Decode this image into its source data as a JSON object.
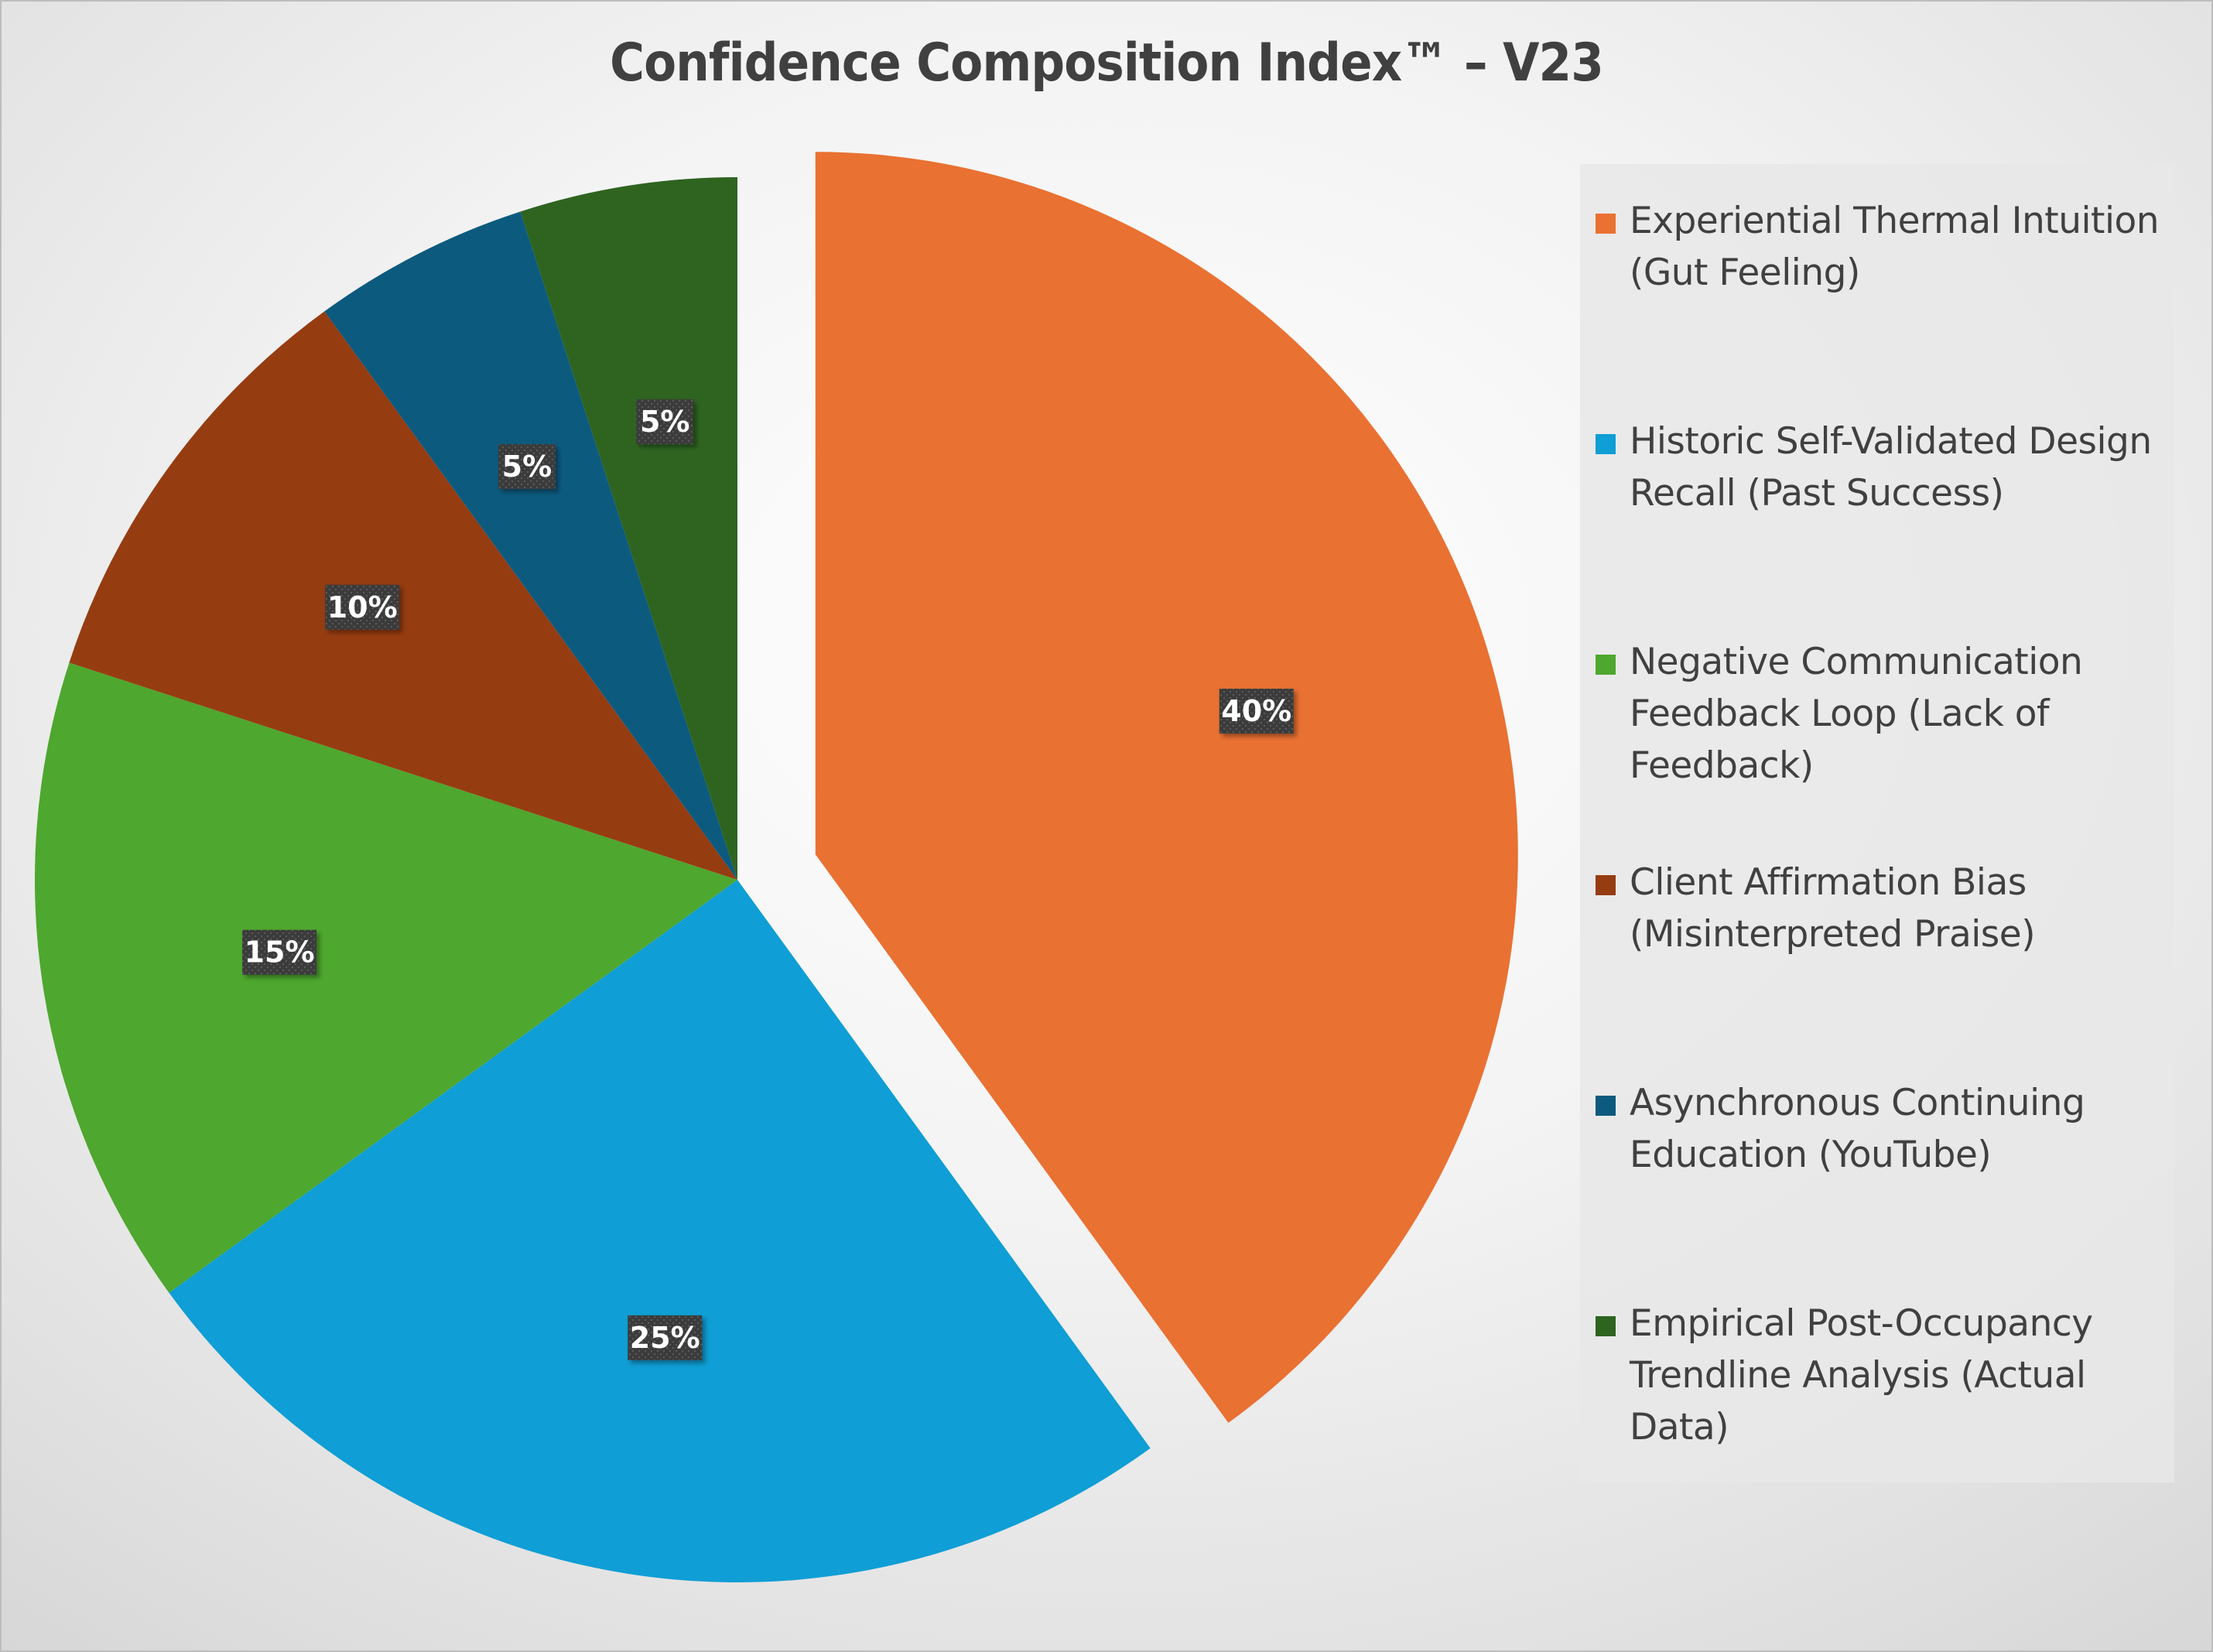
{
  "chart_data": {
    "type": "pie",
    "title": "Confidence Composition Index™ – V23",
    "slices": [
      {
        "label": "Experiential Thermal Intuition (Gut Feeling)",
        "value": 40,
        "data_label": "40%",
        "color": "#E97132",
        "exploded": true
      },
      {
        "label": "Historic Self-Validated Design Recall (Past Success)",
        "value": 25,
        "data_label": "25%",
        "color": "#0F9ED5",
        "exploded": false
      },
      {
        "label": "Negative Communication Feedback Loop (Lack of Feedback)",
        "value": 15,
        "data_label": "15%",
        "color": "#4EA72E",
        "exploded": false
      },
      {
        "label": "Client Affirmation Bias (Misinterpreted Praise)",
        "value": 10,
        "data_label": "10%",
        "color": "#963C11",
        "exploded": false
      },
      {
        "label": "Asynchronous Continuing Education (YouTube)",
        "value": 5,
        "data_label": "5%",
        "color": "#0C5A7E",
        "exploded": false
      },
      {
        "label": "Empirical Post-Occupancy Trendline Analysis (Actual Data)",
        "value": 5,
        "data_label": "5%",
        "color": "#2E6420",
        "exploded": false
      }
    ],
    "legend_position": "right"
  }
}
